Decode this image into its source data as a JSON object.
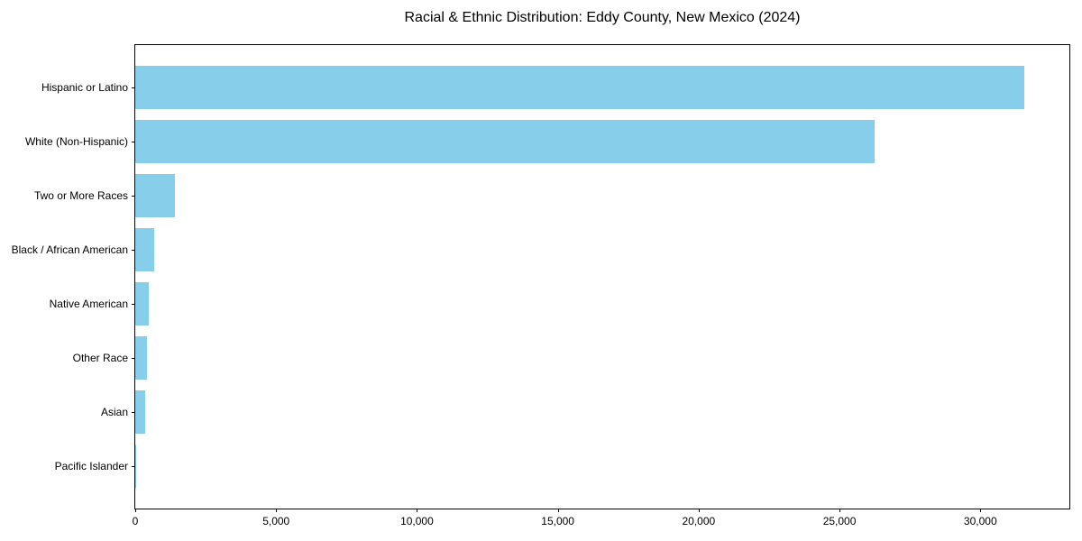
{
  "figure": {
    "title": "Racial & Ethnic Distribution: Eddy County, New Mexico (2024)"
  },
  "chart_data": {
    "type": "bar",
    "orientation": "horizontal",
    "title": "Racial & Ethnic Distribution: Eddy County, New Mexico (2024)",
    "categories": [
      "Hispanic or Latino",
      "White (Non-Hispanic)",
      "Two or More Races",
      "Black / African American",
      "Native American",
      "Other Race",
      "Asian",
      "Pacific Islander"
    ],
    "values": [
      31550,
      26250,
      1400,
      680,
      480,
      410,
      350,
      30
    ],
    "xlabel": "",
    "ylabel": "",
    "xlim": [
      0,
      33160
    ],
    "x_ticks": [
      0,
      5000,
      10000,
      15000,
      20000,
      25000,
      30000
    ],
    "x_tick_labels": [
      "0",
      "5,000",
      "10,000",
      "15,000",
      "20,000",
      "25,000",
      "30,000"
    ],
    "bar_color": "#87CEEB",
    "grid": false,
    "legend": null
  }
}
